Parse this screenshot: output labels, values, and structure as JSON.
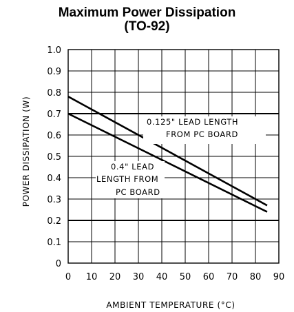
{
  "chart_data": {
    "type": "line",
    "title": "Maximum Power Dissipation",
    "subtitle": "(TO-92)",
    "xlabel": "AMBIENT TEMPERATURE (°C)",
    "ylabel": "POWER DISSIPATION (W)",
    "xlim": [
      0,
      90
    ],
    "ylim": [
      0,
      1.0
    ],
    "x_ticks": [
      "0",
      "10",
      "20",
      "30",
      "40",
      "50",
      "60",
      "70",
      "80",
      "90"
    ],
    "y_ticks": [
      "0",
      "0.1",
      "0.2",
      "0.3",
      "0.4",
      "0.5",
      "0.6",
      "0.7",
      "0.8",
      "0.9",
      "1.0"
    ],
    "grid": true,
    "series": [
      {
        "name": "0.125\" LEAD LENGTH FROM PC BOARD",
        "x": [
          0,
          85
        ],
        "y": [
          0.78,
          0.27
        ]
      },
      {
        "name": "0.4\" LEAD LENGTH FROM PC BOARD",
        "x": [
          0,
          85
        ],
        "y": [
          0.7,
          0.24
        ]
      }
    ],
    "annotations": [
      {
        "lines": [
          "0.125\" LEAD LENGTH",
          "FROM PC BOARD"
        ]
      },
      {
        "lines": [
          "0.4\" LEAD",
          "LENGTH FROM",
          "PC BOARD"
        ]
      }
    ]
  }
}
